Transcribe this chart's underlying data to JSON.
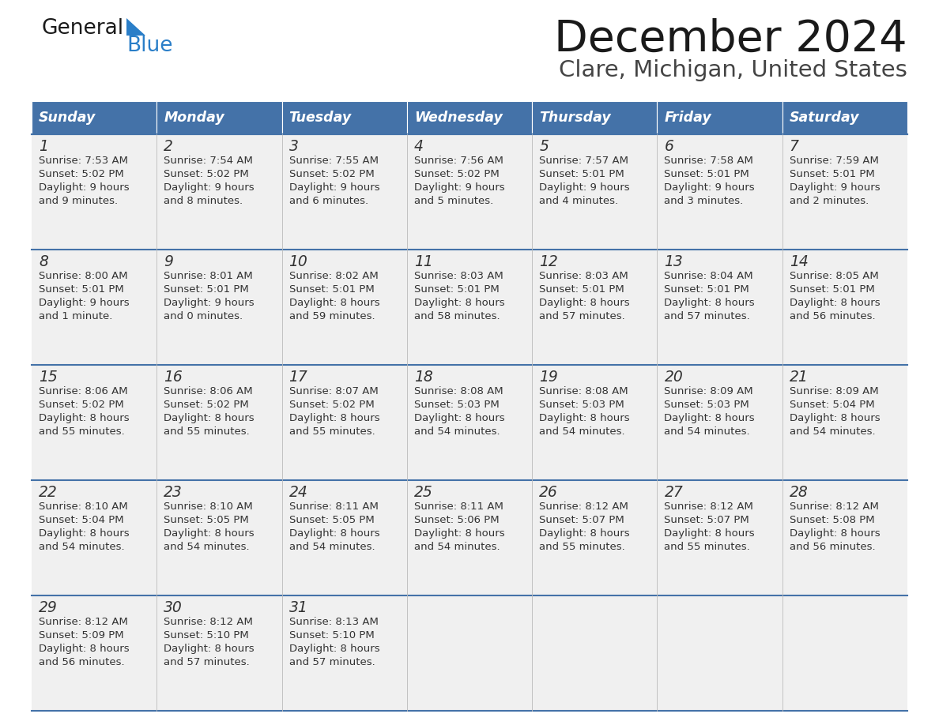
{
  "title": "December 2024",
  "subtitle": "Clare, Michigan, United States",
  "header_bg_color": "#4472a8",
  "header_text_color": "#ffffff",
  "cell_bg_color": "#f0f0f0",
  "cell_text_color": "#333333",
  "border_color": "#4472a8",
  "days_of_week": [
    "Sunday",
    "Monday",
    "Tuesday",
    "Wednesday",
    "Thursday",
    "Friday",
    "Saturday"
  ],
  "weeks": [
    [
      {
        "day": "1",
        "sunrise": "7:53 AM",
        "sunset": "5:02 PM",
        "daylight_h": "9 hours",
        "daylight_m": "and 9 minutes."
      },
      {
        "day": "2",
        "sunrise": "7:54 AM",
        "sunset": "5:02 PM",
        "daylight_h": "9 hours",
        "daylight_m": "and 8 minutes."
      },
      {
        "day": "3",
        "sunrise": "7:55 AM",
        "sunset": "5:02 PM",
        "daylight_h": "9 hours",
        "daylight_m": "and 6 minutes."
      },
      {
        "day": "4",
        "sunrise": "7:56 AM",
        "sunset": "5:02 PM",
        "daylight_h": "9 hours",
        "daylight_m": "and 5 minutes."
      },
      {
        "day": "5",
        "sunrise": "7:57 AM",
        "sunset": "5:01 PM",
        "daylight_h": "9 hours",
        "daylight_m": "and 4 minutes."
      },
      {
        "day": "6",
        "sunrise": "7:58 AM",
        "sunset": "5:01 PM",
        "daylight_h": "9 hours",
        "daylight_m": "and 3 minutes."
      },
      {
        "day": "7",
        "sunrise": "7:59 AM",
        "sunset": "5:01 PM",
        "daylight_h": "9 hours",
        "daylight_m": "and 2 minutes."
      }
    ],
    [
      {
        "day": "8",
        "sunrise": "8:00 AM",
        "sunset": "5:01 PM",
        "daylight_h": "9 hours",
        "daylight_m": "and 1 minute."
      },
      {
        "day": "9",
        "sunrise": "8:01 AM",
        "sunset": "5:01 PM",
        "daylight_h": "9 hours",
        "daylight_m": "and 0 minutes."
      },
      {
        "day": "10",
        "sunrise": "8:02 AM",
        "sunset": "5:01 PM",
        "daylight_h": "8 hours",
        "daylight_m": "and 59 minutes."
      },
      {
        "day": "11",
        "sunrise": "8:03 AM",
        "sunset": "5:01 PM",
        "daylight_h": "8 hours",
        "daylight_m": "and 58 minutes."
      },
      {
        "day": "12",
        "sunrise": "8:03 AM",
        "sunset": "5:01 PM",
        "daylight_h": "8 hours",
        "daylight_m": "and 57 minutes."
      },
      {
        "day": "13",
        "sunrise": "8:04 AM",
        "sunset": "5:01 PM",
        "daylight_h": "8 hours",
        "daylight_m": "and 57 minutes."
      },
      {
        "day": "14",
        "sunrise": "8:05 AM",
        "sunset": "5:01 PM",
        "daylight_h": "8 hours",
        "daylight_m": "and 56 minutes."
      }
    ],
    [
      {
        "day": "15",
        "sunrise": "8:06 AM",
        "sunset": "5:02 PM",
        "daylight_h": "8 hours",
        "daylight_m": "and 55 minutes."
      },
      {
        "day": "16",
        "sunrise": "8:06 AM",
        "sunset": "5:02 PM",
        "daylight_h": "8 hours",
        "daylight_m": "and 55 minutes."
      },
      {
        "day": "17",
        "sunrise": "8:07 AM",
        "sunset": "5:02 PM",
        "daylight_h": "8 hours",
        "daylight_m": "and 55 minutes."
      },
      {
        "day": "18",
        "sunrise": "8:08 AM",
        "sunset": "5:03 PM",
        "daylight_h": "8 hours",
        "daylight_m": "and 54 minutes."
      },
      {
        "day": "19",
        "sunrise": "8:08 AM",
        "sunset": "5:03 PM",
        "daylight_h": "8 hours",
        "daylight_m": "and 54 minutes."
      },
      {
        "day": "20",
        "sunrise": "8:09 AM",
        "sunset": "5:03 PM",
        "daylight_h": "8 hours",
        "daylight_m": "and 54 minutes."
      },
      {
        "day": "21",
        "sunrise": "8:09 AM",
        "sunset": "5:04 PM",
        "daylight_h": "8 hours",
        "daylight_m": "and 54 minutes."
      }
    ],
    [
      {
        "day": "22",
        "sunrise": "8:10 AM",
        "sunset": "5:04 PM",
        "daylight_h": "8 hours",
        "daylight_m": "and 54 minutes."
      },
      {
        "day": "23",
        "sunrise": "8:10 AM",
        "sunset": "5:05 PM",
        "daylight_h": "8 hours",
        "daylight_m": "and 54 minutes."
      },
      {
        "day": "24",
        "sunrise": "8:11 AM",
        "sunset": "5:05 PM",
        "daylight_h": "8 hours",
        "daylight_m": "and 54 minutes."
      },
      {
        "day": "25",
        "sunrise": "8:11 AM",
        "sunset": "5:06 PM",
        "daylight_h": "8 hours",
        "daylight_m": "and 54 minutes."
      },
      {
        "day": "26",
        "sunrise": "8:12 AM",
        "sunset": "5:07 PM",
        "daylight_h": "8 hours",
        "daylight_m": "and 55 minutes."
      },
      {
        "day": "27",
        "sunrise": "8:12 AM",
        "sunset": "5:07 PM",
        "daylight_h": "8 hours",
        "daylight_m": "and 55 minutes."
      },
      {
        "day": "28",
        "sunrise": "8:12 AM",
        "sunset": "5:08 PM",
        "daylight_h": "8 hours",
        "daylight_m": "and 56 minutes."
      }
    ],
    [
      {
        "day": "29",
        "sunrise": "8:12 AM",
        "sunset": "5:09 PM",
        "daylight_h": "8 hours",
        "daylight_m": "and 56 minutes."
      },
      {
        "day": "30",
        "sunrise": "8:12 AM",
        "sunset": "5:10 PM",
        "daylight_h": "8 hours",
        "daylight_m": "and 57 minutes."
      },
      {
        "day": "31",
        "sunrise": "8:13 AM",
        "sunset": "5:10 PM",
        "daylight_h": "8 hours",
        "daylight_m": "and 57 minutes."
      },
      null,
      null,
      null,
      null
    ]
  ],
  "logo_color_general": "#1a1a1a",
  "logo_color_blue": "#2a7ec8",
  "title_color": "#1a1a1a",
  "subtitle_color": "#444444"
}
